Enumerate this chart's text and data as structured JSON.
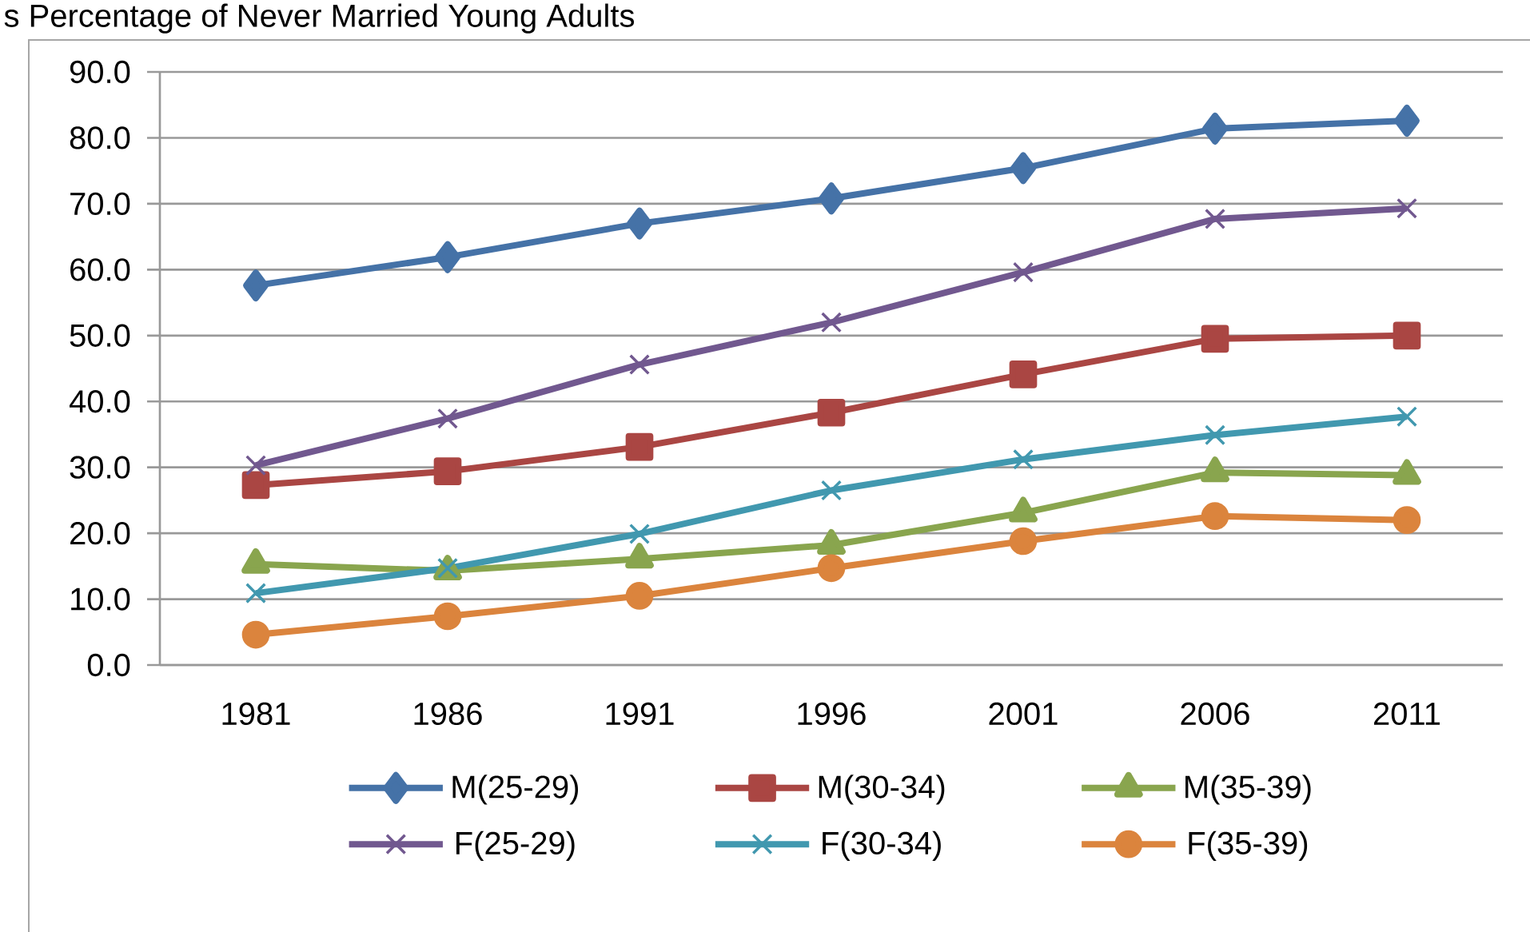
{
  "chart_data": {
    "type": "line",
    "title": "s Percentage of Never Married Young Adults",
    "categories": [
      "1981",
      "1986",
      "1991",
      "1996",
      "2001",
      "2006",
      "2011"
    ],
    "ylim": [
      0,
      90
    ],
    "yticks": [
      {
        "value": 0,
        "label": "0.0"
      },
      {
        "value": 10,
        "label": "10.0"
      },
      {
        "value": 20,
        "label": "20.0"
      },
      {
        "value": 30,
        "label": "30.0"
      },
      {
        "value": 40,
        "label": "40.0"
      },
      {
        "value": 50,
        "label": "50.0"
      },
      {
        "value": 60,
        "label": "60.0"
      },
      {
        "value": 70,
        "label": "70.0"
      },
      {
        "value": 80,
        "label": "80.0"
      },
      {
        "value": 90,
        "label": "90.0"
      }
    ],
    "grid": "y",
    "legend": "bottom",
    "line_style": "solid",
    "series": [
      {
        "name": "M(25-29)",
        "color": "#4572a7",
        "marker": "diamond",
        "values": [
          57.6,
          61.9,
          67.0,
          70.8,
          75.4,
          81.4,
          82.6
        ]
      },
      {
        "name": "M(30-34)",
        "color": "#aa4643",
        "marker": "square",
        "values": [
          27.3,
          29.4,
          33.1,
          38.3,
          44.1,
          49.5,
          50.0
        ]
      },
      {
        "name": "M(35-39)",
        "color": "#89a54e",
        "marker": "triangle",
        "values": [
          15.3,
          14.3,
          16.1,
          18.2,
          23.1,
          29.2,
          28.8
        ]
      },
      {
        "name": "F(25-29)",
        "color": "#71588f",
        "marker": "cross",
        "values": [
          30.3,
          37.4,
          45.6,
          52.0,
          59.6,
          67.7,
          69.3
        ]
      },
      {
        "name": "F(30-34)",
        "color": "#4198af",
        "marker": "cross",
        "values": [
          10.9,
          14.7,
          19.9,
          26.5,
          31.2,
          34.9,
          37.7
        ]
      },
      {
        "name": "F(35-39)",
        "color": "#db843d",
        "marker": "circle",
        "values": [
          4.6,
          7.4,
          10.5,
          14.7,
          18.8,
          22.6,
          22.0
        ]
      }
    ]
  }
}
